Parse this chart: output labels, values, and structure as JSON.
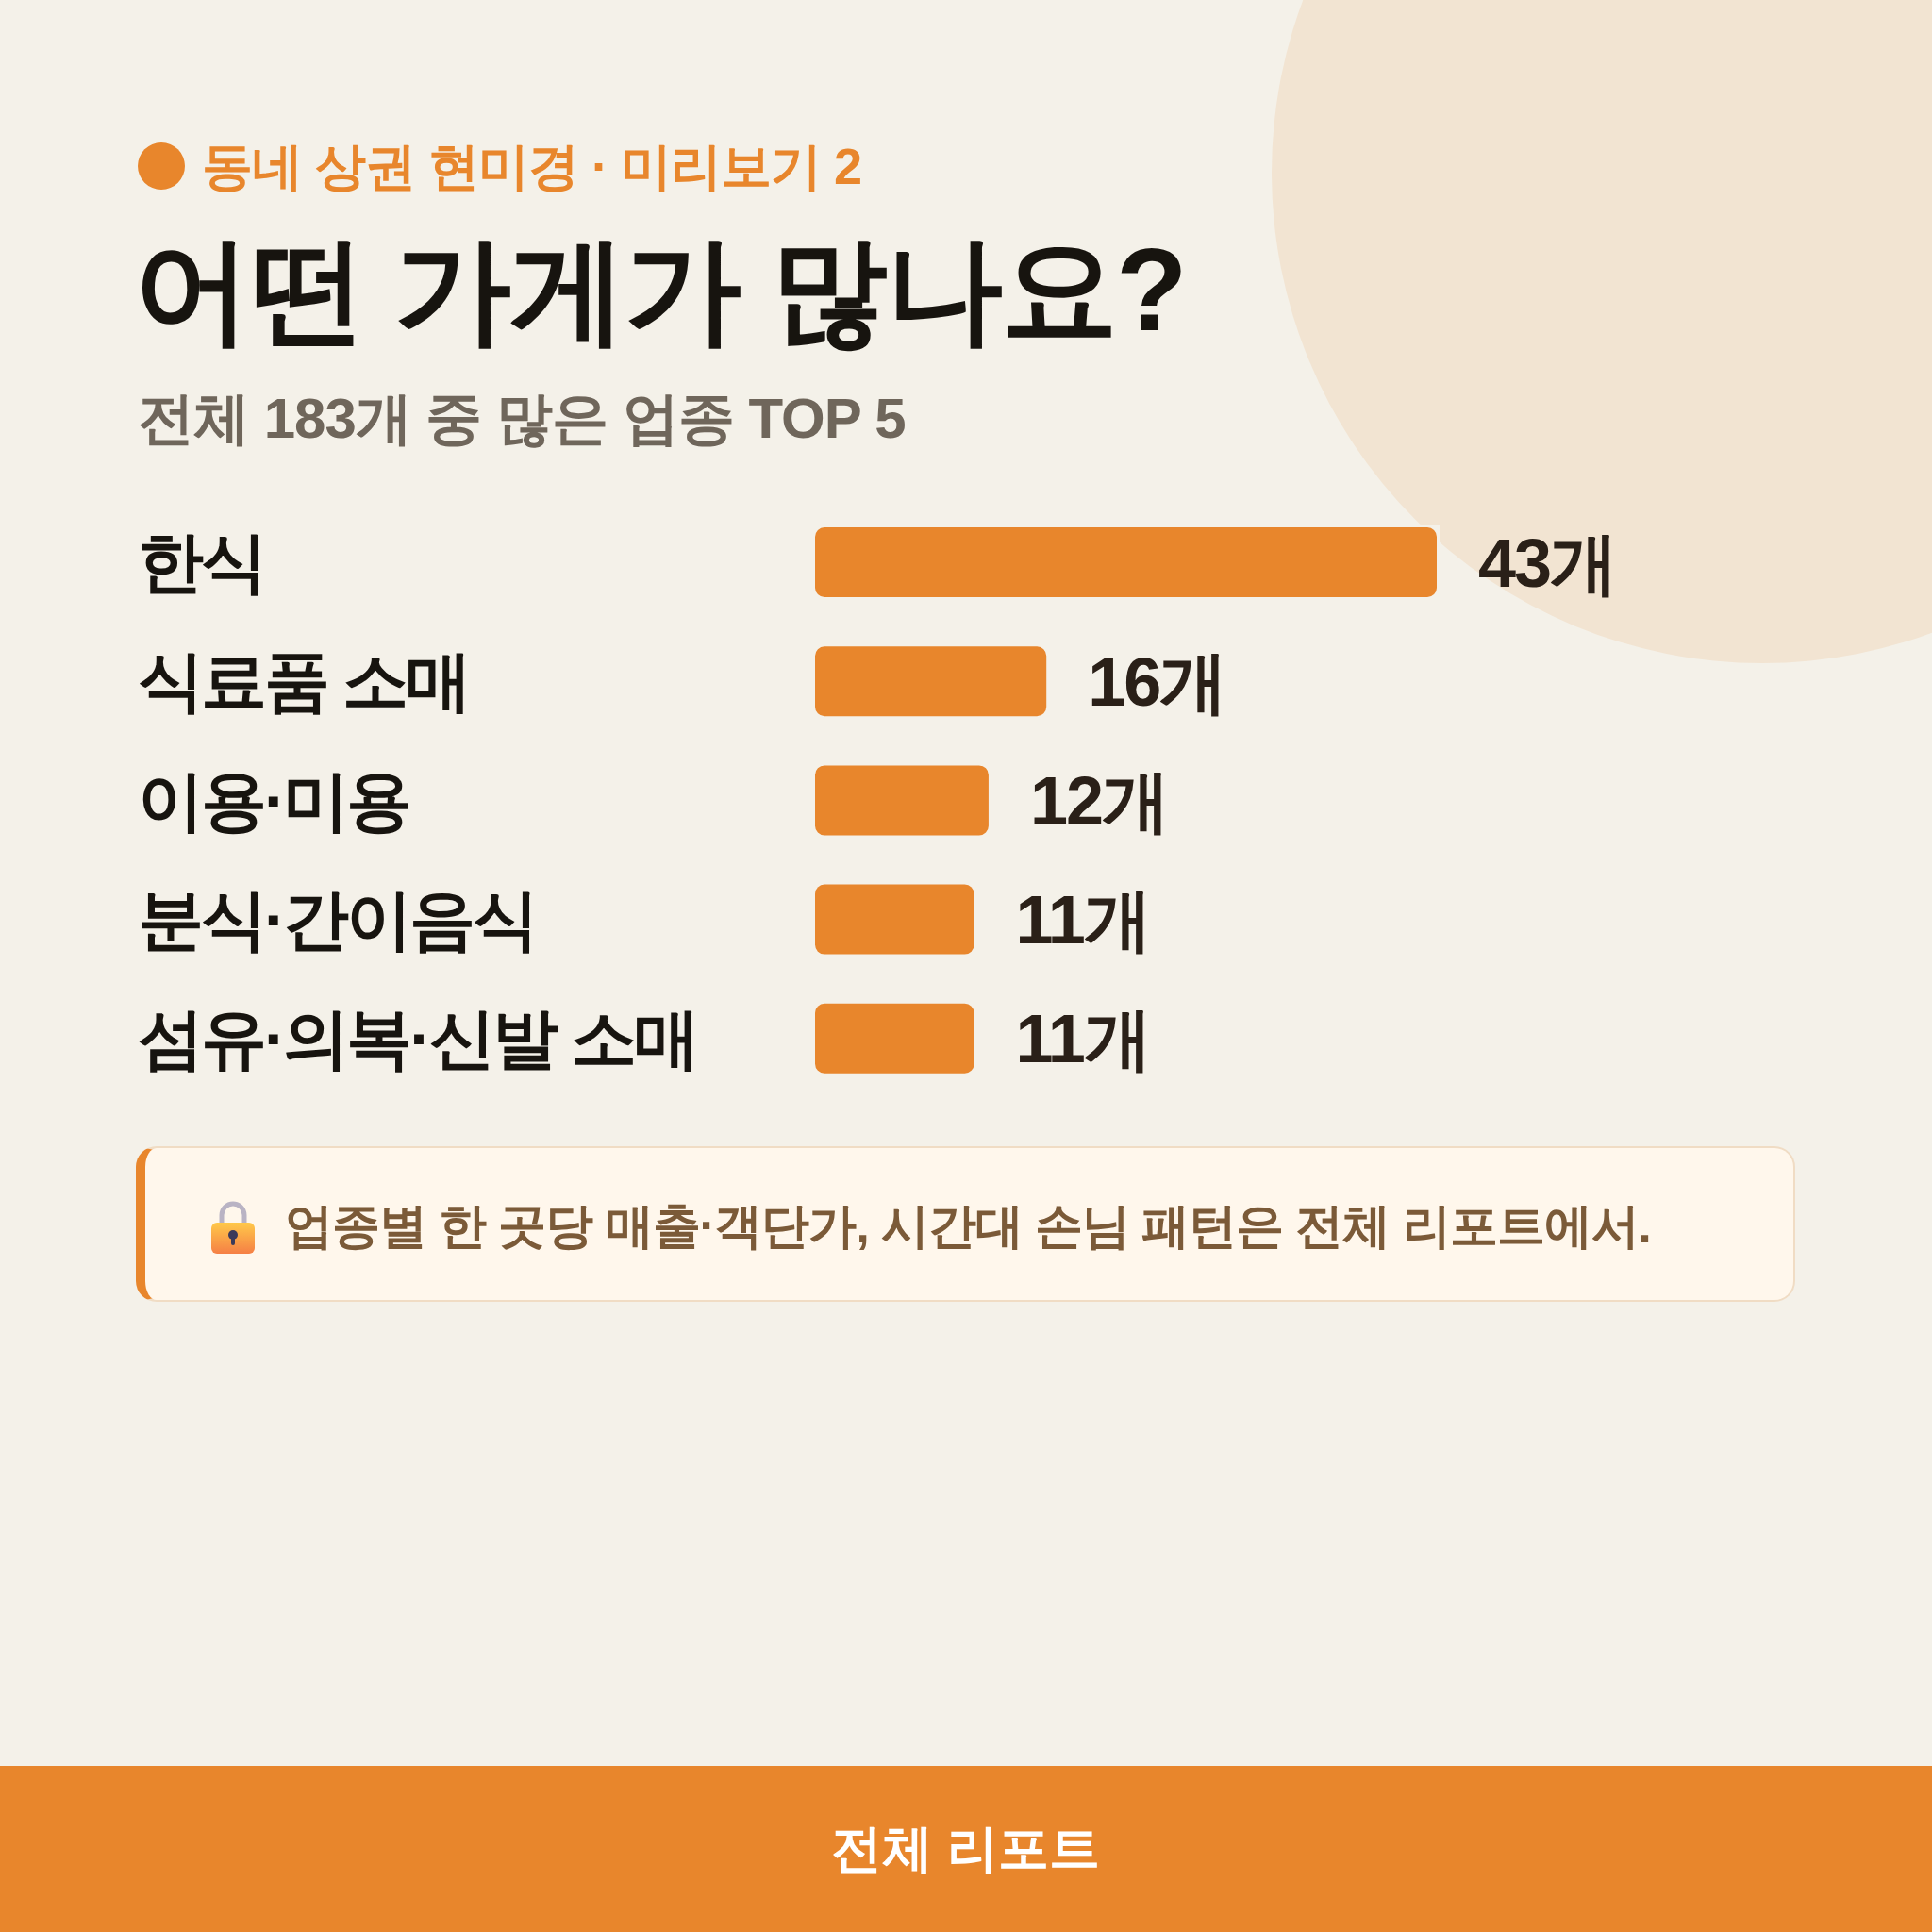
{
  "chart_data": {
    "type": "bar",
    "orientation": "horizontal",
    "title": "어떤 가게가 많나요?",
    "subtitle": "전체 183개 중 많은 업종 TOP 5",
    "categories": [
      "한식",
      "식료품 소매",
      "이용·미용",
      "분식·간이음식",
      "섬유·의복·신발 소매"
    ],
    "values": [
      43,
      16,
      12,
      11,
      11
    ],
    "value_labels": [
      "43개",
      "16개",
      "12개",
      "11개",
      "11개"
    ],
    "color": "#e8862c",
    "tick_labels": "y",
    "annotations": [
      "동네 상권 현미경 · 미리보기 2",
      "업종별 한 곳당 매출·객단가, 시간대 손님 패턴은 전체 리포트에서.",
      "전체 리포트"
    ]
  }
}
